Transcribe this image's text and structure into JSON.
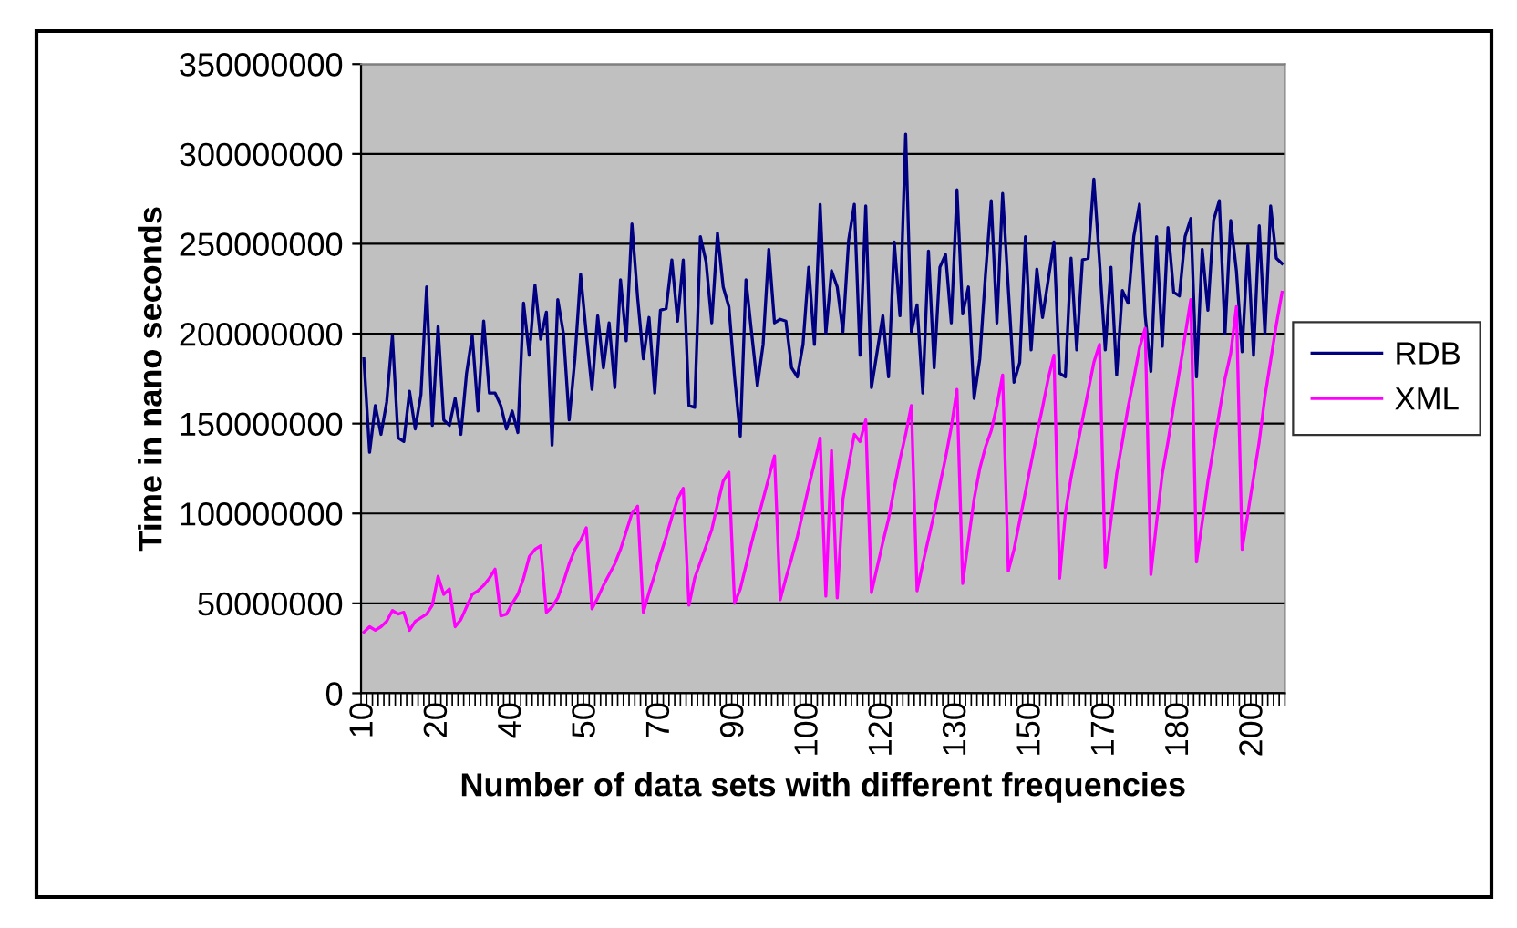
{
  "chart_data": {
    "type": "line",
    "xlabel": "Number of data sets with different frequencies",
    "ylabel": "Time in nano seconds",
    "categories": [
      "10",
      null,
      null,
      null,
      null,
      null,
      null,
      null,
      null,
      null,
      null,
      null,
      null,
      "20",
      null,
      null,
      null,
      null,
      null,
      null,
      null,
      null,
      null,
      null,
      null,
      null,
      "40",
      null,
      null,
      null,
      null,
      null,
      null,
      null,
      null,
      null,
      null,
      null,
      null,
      "50",
      null,
      null,
      null,
      null,
      null,
      null,
      null,
      null,
      null,
      null,
      null,
      null,
      "70",
      null,
      null,
      null,
      null,
      null,
      null,
      null,
      null,
      null,
      null,
      null,
      null,
      "90",
      null,
      null,
      null,
      null,
      null,
      null,
      null,
      null,
      null,
      null,
      null,
      null,
      "100",
      null,
      null,
      null,
      null,
      null,
      null,
      null,
      null,
      null,
      null,
      null,
      null,
      "120",
      null,
      null,
      null,
      null,
      null,
      null,
      null,
      null,
      null,
      null,
      null,
      null,
      "130",
      null,
      null,
      null,
      null,
      null,
      null,
      null,
      null,
      null,
      null,
      null,
      null,
      "150",
      null,
      null,
      null,
      null,
      null,
      null,
      null,
      null,
      null,
      null,
      null,
      null,
      "170",
      null,
      null,
      null,
      null,
      null,
      null,
      null,
      null,
      null,
      null,
      null,
      null,
      "180",
      null,
      null,
      null,
      null,
      null,
      null,
      null,
      null,
      null,
      null,
      null,
      null,
      "200",
      null,
      null,
      null,
      null,
      null
    ],
    "ylim": [
      0,
      350000000
    ],
    "yticks": [
      0,
      50000000,
      100000000,
      150000000,
      200000000,
      250000000,
      300000000,
      350000000
    ],
    "grid": "y",
    "legend": "right",
    "marker": "none",
    "line_style": "solid",
    "series": [
      {
        "name": "RDB",
        "color": "#000080",
        "values": [
          186000000.0,
          134000000.0,
          160000000.0,
          144000000.0,
          162000000.0,
          199000000.0,
          142000000.0,
          140000000.0,
          168000000.0,
          147000000.0,
          166000000.0,
          226000000.0,
          149000000.0,
          204000000.0,
          152000000.0,
          149000000.0,
          164000000.0,
          144000000.0,
          178000000.0,
          199000000.0,
          157000000.0,
          207000000.0,
          167000000.0,
          167000000.0,
          160000000.0,
          147000000.0,
          157000000.0,
          145000000.0,
          217000000.0,
          188000000.0,
          227000000.0,
          197000000.0,
          212000000.0,
          138000000.0,
          219000000.0,
          200000000.0,
          152000000.0,
          186000000.0,
          233000000.0,
          200000000.0,
          169000000.0,
          210000000.0,
          181000000.0,
          206000000.0,
          170000000.0,
          230000000.0,
          196000000.0,
          261000000.0,
          220000000.0,
          186000000.0,
          209000000.0,
          167000000.0,
          213000000.0,
          214000000.0,
          241000000.0,
          207000000.0,
          241000000.0,
          160000000.0,
          159000000.0,
          254000000.0,
          240000000.0,
          206000000.0,
          256000000.0,
          226000000.0,
          215000000.0,
          176000000.0,
          143000000.0,
          230000000.0,
          200000000.0,
          171000000.0,
          194000000.0,
          247000000.0,
          206000000.0,
          208000000.0,
          207000000.0,
          181000000.0,
          176000000.0,
          194000000.0,
          237000000.0,
          194000000.0,
          272000000.0,
          200000000.0,
          235000000.0,
          226000000.0,
          201000000.0,
          252000000.0,
          272000000.0,
          188000000.0,
          271000000.0,
          170000000.0,
          190000000.0,
          210000000.0,
          176000000.0,
          251000000.0,
          210000000.0,
          311000000.0,
          201000000.0,
          216000000.0,
          167000000.0,
          246000000.0,
          181000000.0,
          237000000.0,
          244000000.0,
          206000000.0,
          280000000.0,
          211000000.0,
          226000000.0,
          164000000.0,
          186000000.0,
          233000000.0,
          274000000.0,
          206000000.0,
          278000000.0,
          225000000.0,
          173000000.0,
          184000000.0,
          254000000.0,
          191000000.0,
          236000000.0,
          209000000.0,
          230000000.0,
          251000000.0,
          178000000.0,
          176000000.0,
          242000000.0,
          191000000.0,
          241000000.0,
          242000000.0,
          286000000.0,
          240000000.0,
          191000000.0,
          237000000.0,
          177000000.0,
          224000000.0,
          217000000.0,
          254000000.0,
          272000000.0,
          210000000.0,
          179000000.0,
          254000000.0,
          193000000.0,
          259000000.0,
          223000000.0,
          221000000.0,
          254000000.0,
          264000000.0,
          176000000.0,
          247000000.0,
          213000000.0,
          263000000.0,
          274000000.0,
          200000000.0,
          263000000.0,
          235000000.0,
          190000000.0,
          249000000.0,
          188000000.0,
          260000000.0,
          200000000.0,
          271000000.0,
          242000000.0,
          239000000.0
        ]
      },
      {
        "name": "XML",
        "color": "#ff00ff",
        "values": [
          34000000.0,
          37000000.0,
          35000000.0,
          37000000.0,
          40000000.0,
          46000000.0,
          44000000.0,
          45000000.0,
          35000000.0,
          40000000.0,
          42000000.0,
          44000000.0,
          49000000.0,
          65000000.0,
          55000000.0,
          58000000.0,
          37000000.0,
          41000000.0,
          48000000.0,
          55000000.0,
          57000000.0,
          60000000.0,
          64000000.0,
          69000000.0,
          43000000.0,
          44000000.0,
          50000000.0,
          55000000.0,
          64000000.0,
          76000000.0,
          80000000.0,
          82000000.0,
          45000000.0,
          48000000.0,
          53000000.0,
          62000000.0,
          72000000.0,
          80000000.0,
          85000000.0,
          92000000.0,
          47000000.0,
          53000000.0,
          60000000.0,
          66000000.0,
          72000000.0,
          80000000.0,
          90000000.0,
          100000000.0,
          104000000.0,
          45000000.0,
          56000000.0,
          66000000.0,
          77000000.0,
          87000000.0,
          98000000.0,
          108000000.0,
          114000000.0,
          49000000.0,
          64000000.0,
          73000000.0,
          82000000.0,
          91000000.0,
          105000000.0,
          118000000.0,
          123000000.0,
          50000000.0,
          58000000.0,
          71000000.0,
          84000000.0,
          96000000.0,
          108000000.0,
          120000000.0,
          132000000.0,
          52000000.0,
          64000000.0,
          75000000.0,
          87000000.0,
          101000000.0,
          115000000.0,
          128000000.0,
          142000000.0,
          54000000.0,
          135000000.0,
          53000000.0,
          108000000.0,
          127000000.0,
          144000000.0,
          140000000.0,
          152000000.0,
          56000000.0,
          70000000.0,
          84000000.0,
          97000000.0,
          114000000.0,
          130000000.0,
          144000000.0,
          160000000.0,
          57000000.0,
          72000000.0,
          86000000.0,
          100000000.0,
          116000000.0,
          131000000.0,
          148000000.0,
          169000000.0,
          61000000.0,
          85000000.0,
          108000000.0,
          125000000.0,
          137000000.0,
          146000000.0,
          160000000.0,
          177000000.0,
          68000000.0,
          80000000.0,
          96000000.0,
          112000000.0,
          128000000.0,
          144000000.0,
          159000000.0,
          175000000.0,
          188000000.0,
          64000000.0,
          100000000.0,
          120000000.0,
          136000000.0,
          152000000.0,
          168000000.0,
          184000000.0,
          194000000.0,
          70000000.0,
          96000000.0,
          122000000.0,
          140000000.0,
          159000000.0,
          175000000.0,
          192000000.0,
          203000000.0,
          66000000.0,
          95000000.0,
          122000000.0,
          140000000.0,
          160000000.0,
          179000000.0,
          199000000.0,
          219000000.0,
          73000000.0,
          95000000.0,
          118000000.0,
          137000000.0,
          156000000.0,
          175000000.0,
          189000000.0,
          215000000.0,
          80000000.0,
          100000000.0,
          120000000.0,
          140000000.0,
          165000000.0,
          185000000.0,
          205000000.0,
          223000000.0
        ]
      }
    ]
  }
}
